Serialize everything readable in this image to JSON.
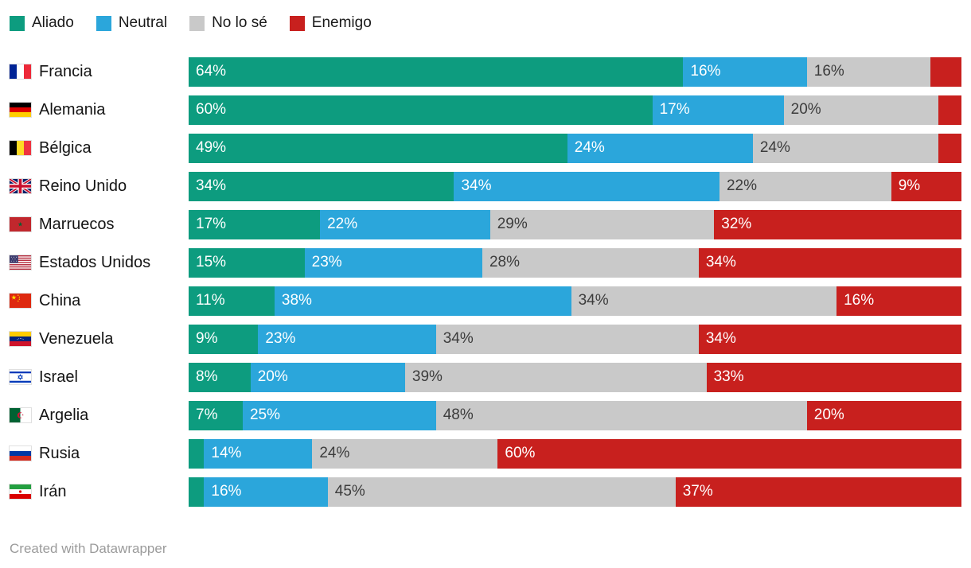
{
  "legend": [
    {
      "label": "Aliado",
      "color": "#0d9c7f"
    },
    {
      "label": "Neutral",
      "color": "#2ba6db"
    },
    {
      "label": "No lo sé",
      "color": "#c9c9c9"
    },
    {
      "label": "Enemigo",
      "color": "#c8201e"
    }
  ],
  "footer": {
    "text": "Created with Datawrapper"
  },
  "chart_data": {
    "type": "bar",
    "stacked": true,
    "orientation": "horizontal",
    "unit": "%",
    "x_range": [
      0,
      100
    ],
    "legend_position": "top",
    "categories": [
      "Francia",
      "Alemania",
      "Bélgica",
      "Reino Unido",
      "Marruecos",
      "Estados Unidos",
      "China",
      "Venezuela",
      "Israel",
      "Argelia",
      "Rusia",
      "Irán"
    ],
    "series": [
      {
        "name": "Aliado",
        "values": [
          64,
          60,
          49,
          34,
          17,
          15,
          11,
          9,
          8,
          7,
          2,
          2
        ]
      },
      {
        "name": "Neutral",
        "values": [
          16,
          17,
          24,
          34,
          22,
          23,
          38,
          23,
          20,
          25,
          14,
          16
        ]
      },
      {
        "name": "No lo sé",
        "values": [
          16,
          20,
          24,
          22,
          29,
          28,
          34,
          34,
          39,
          48,
          24,
          45
        ]
      },
      {
        "name": "Enemigo",
        "values": [
          4,
          3,
          3,
          9,
          32,
          34,
          16,
          34,
          33,
          20,
          60,
          37
        ]
      }
    ],
    "rows": [
      {
        "country": "Francia",
        "flag": "france",
        "values": [
          64,
          16,
          16,
          4
        ],
        "labels": [
          "64%",
          "16%",
          "16%",
          ""
        ]
      },
      {
        "country": "Alemania",
        "flag": "germany",
        "values": [
          60,
          17,
          20,
          3
        ],
        "labels": [
          "60%",
          "17%",
          "20%",
          ""
        ]
      },
      {
        "country": "Bélgica",
        "flag": "belgium",
        "values": [
          49,
          24,
          24,
          3
        ],
        "labels": [
          "49%",
          "24%",
          "24%",
          ""
        ]
      },
      {
        "country": "Reino Unido",
        "flag": "uk",
        "values": [
          34,
          34,
          22,
          9
        ],
        "labels": [
          "34%",
          "34%",
          "22%",
          "9%"
        ]
      },
      {
        "country": "Marruecos",
        "flag": "morocco",
        "values": [
          17,
          22,
          29,
          32
        ],
        "labels": [
          "17%",
          "22%",
          "29%",
          "32%"
        ]
      },
      {
        "country": "Estados Unidos",
        "flag": "usa",
        "values": [
          15,
          23,
          28,
          34
        ],
        "labels": [
          "15%",
          "23%",
          "28%",
          "34%"
        ]
      },
      {
        "country": "China",
        "flag": "china",
        "values": [
          11,
          38,
          34,
          16
        ],
        "labels": [
          "11%",
          "38%",
          "34%",
          "16%"
        ]
      },
      {
        "country": "Venezuela",
        "flag": "venezuela",
        "values": [
          9,
          23,
          34,
          34
        ],
        "labels": [
          "9%",
          "23%",
          "34%",
          "34%"
        ]
      },
      {
        "country": "Israel",
        "flag": "israel",
        "values": [
          8,
          20,
          39,
          33
        ],
        "labels": [
          "8%",
          "20%",
          "39%",
          "33%"
        ]
      },
      {
        "country": "Argelia",
        "flag": "algeria",
        "values": [
          7,
          25,
          48,
          20
        ],
        "labels": [
          "7%",
          "25%",
          "48%",
          "20%"
        ]
      },
      {
        "country": "Rusia",
        "flag": "russia",
        "values": [
          2,
          14,
          24,
          60
        ],
        "labels": [
          "",
          "14%",
          "24%",
          "60%"
        ]
      },
      {
        "country": "Irán",
        "flag": "iran",
        "values": [
          2,
          16,
          45,
          37
        ],
        "labels": [
          "",
          "16%",
          "45%",
          "37%"
        ]
      }
    ]
  }
}
